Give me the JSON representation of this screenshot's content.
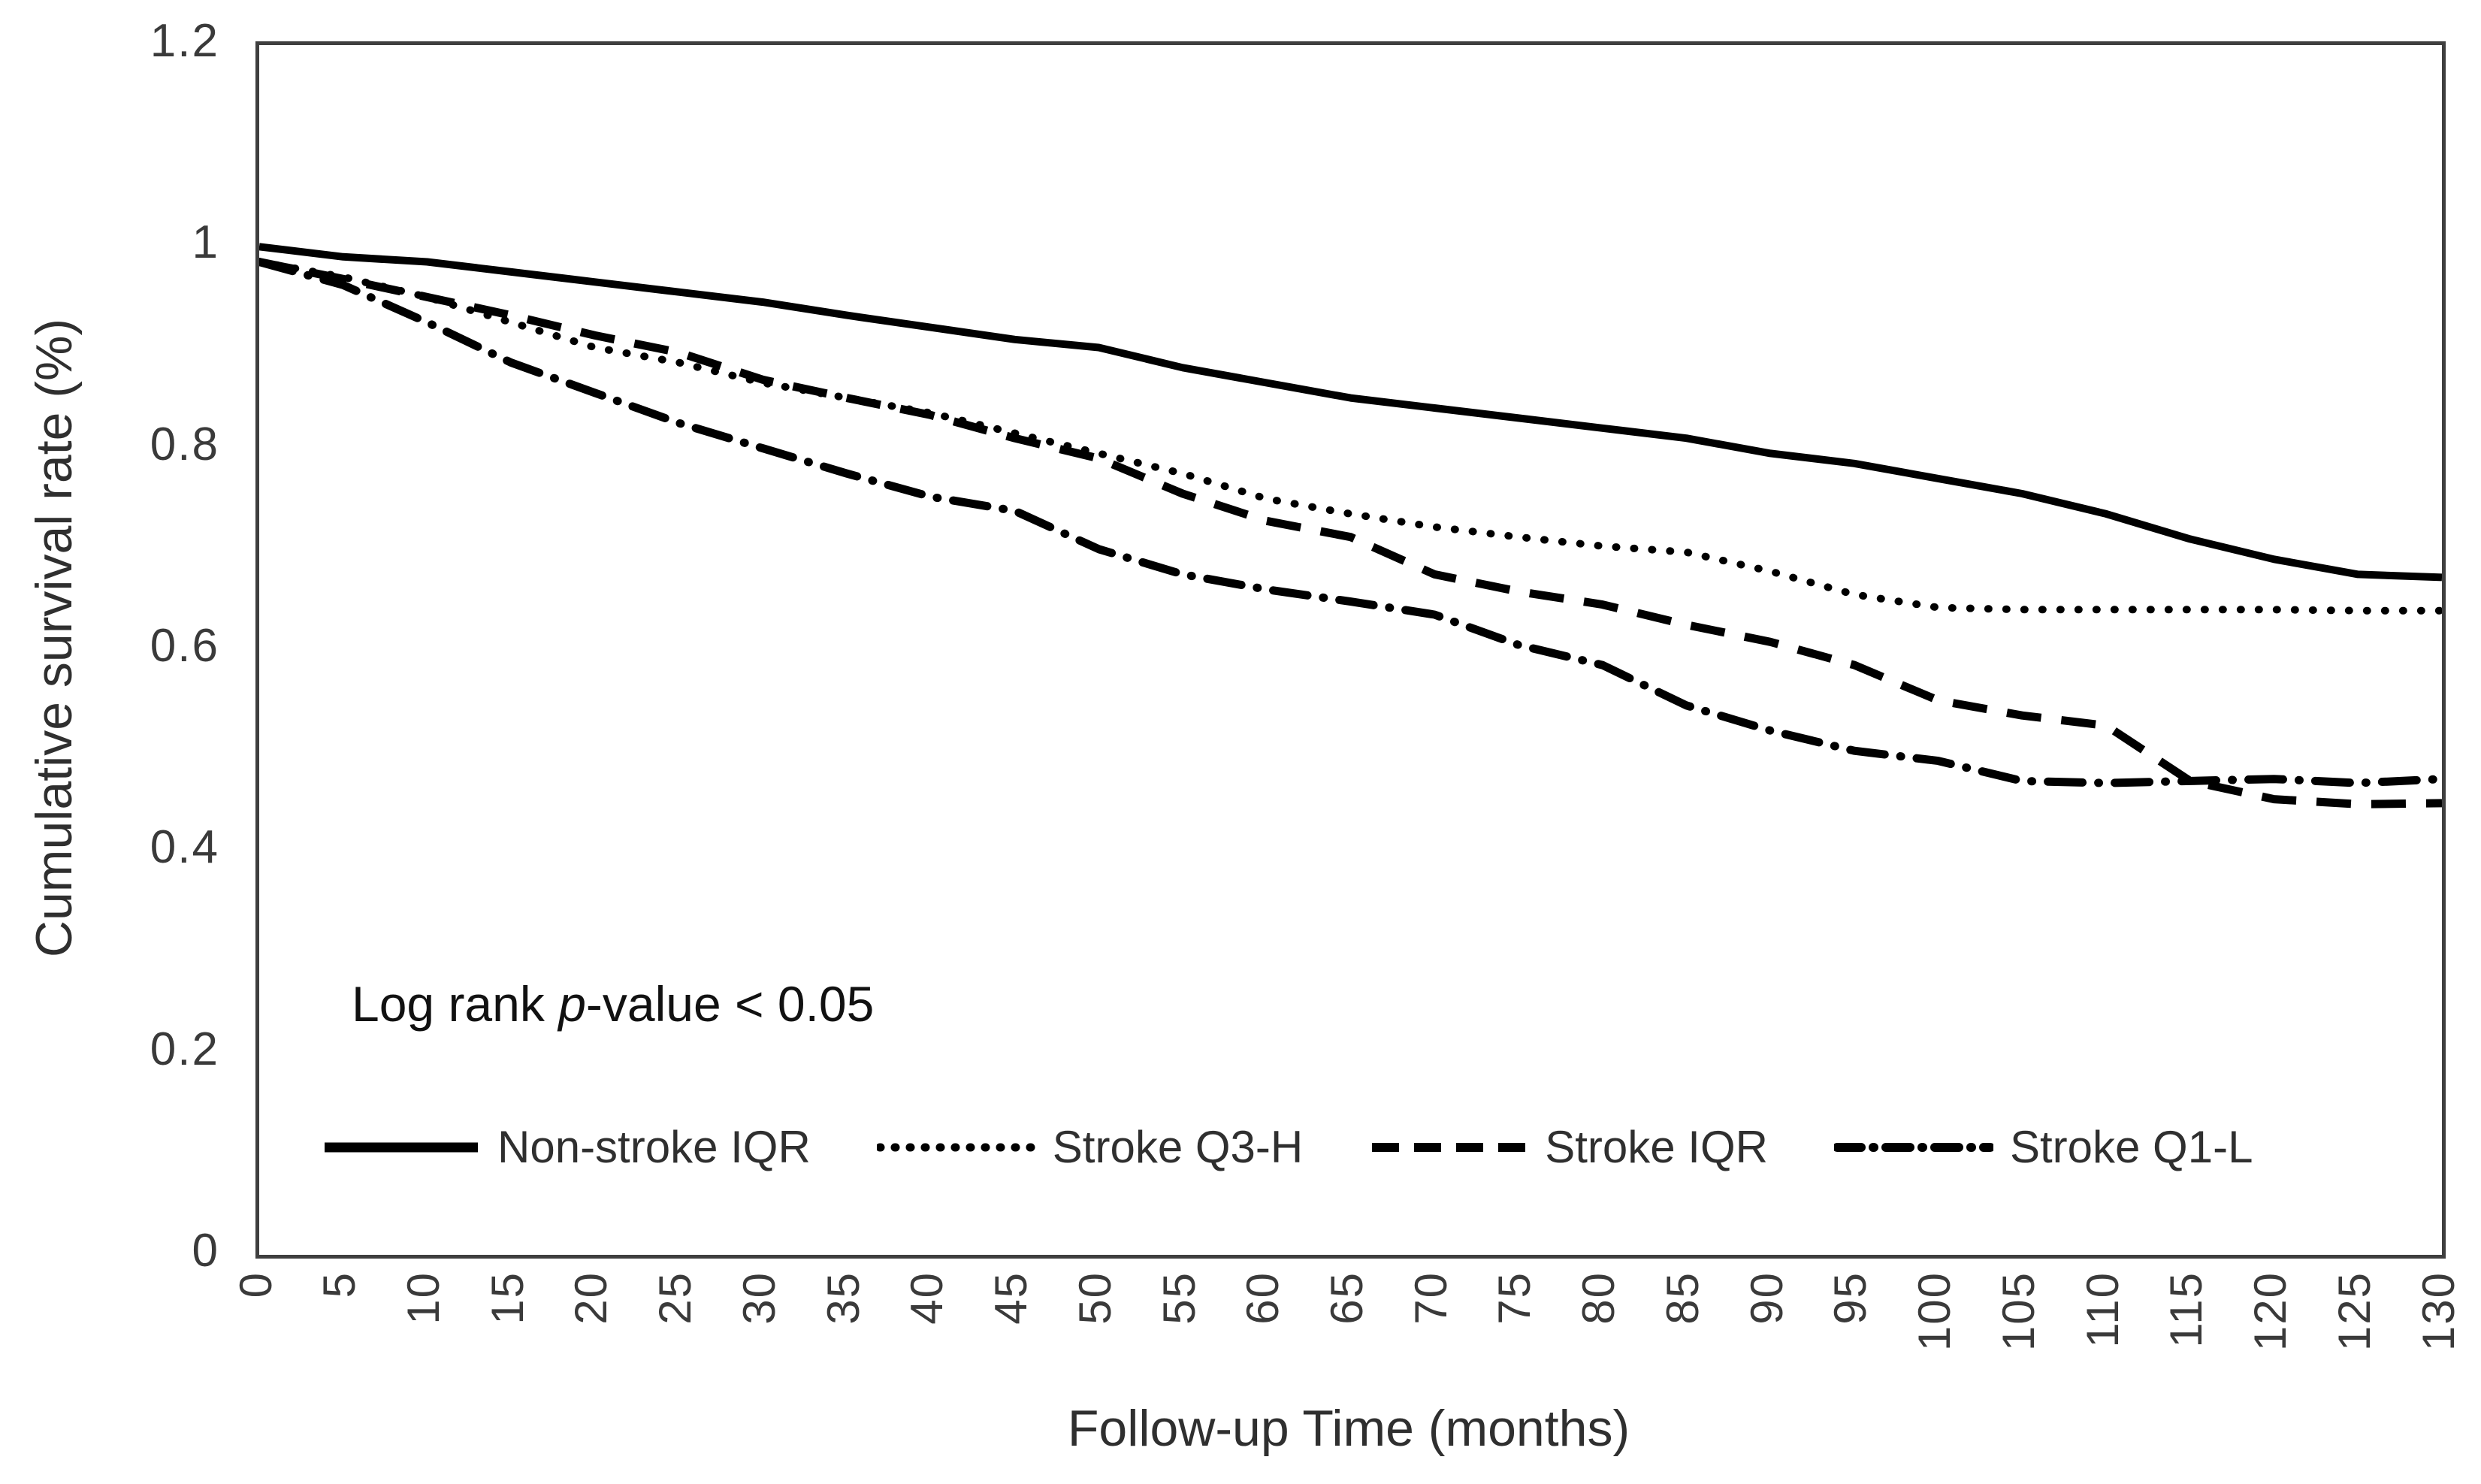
{
  "chart_data": {
    "type": "line",
    "title": "",
    "xlabel": "Follow-up Time (months)",
    "ylabel": "Cumulative survival rate (%)",
    "x": [
      0,
      5,
      10,
      15,
      20,
      25,
      30,
      35,
      40,
      45,
      50,
      55,
      60,
      65,
      70,
      75,
      80,
      85,
      90,
      95,
      100,
      105,
      110,
      115,
      120,
      125,
      130
    ],
    "xlim": [
      0,
      130
    ],
    "ylim": [
      0,
      1.2
    ],
    "yticks": [
      0,
      0.2,
      0.4,
      0.6,
      0.8,
      1,
      1.2
    ],
    "ytick_labels": [
      "0",
      "0.2",
      "0.4",
      "0.6",
      "0.8",
      "1",
      "1.2"
    ],
    "xtick_labels": [
      "0",
      "5",
      "10",
      "15",
      "20",
      "25",
      "30",
      "35",
      "40",
      "45",
      "50",
      "55",
      "60",
      "65",
      "70",
      "75",
      "80",
      "85",
      "90",
      "95",
      "100",
      "105",
      "110",
      "115",
      "120",
      "125",
      "130"
    ],
    "grid": false,
    "legend_position": "bottom-inside",
    "line_color": "#000000",
    "axis_color": "#3f3f3f",
    "annotation": {
      "prefix": "Log rank ",
      "italic": "p",
      "suffix": "-value < 0.05"
    },
    "series": [
      {
        "name": "Non-stroke IQR",
        "dash": "solid",
        "values": [
          1.0,
          0.99,
          0.985,
          0.975,
          0.965,
          0.955,
          0.945,
          0.932,
          0.92,
          0.908,
          0.9,
          0.88,
          0.865,
          0.85,
          0.84,
          0.83,
          0.82,
          0.81,
          0.795,
          0.785,
          0.77,
          0.755,
          0.735,
          0.71,
          0.69,
          0.675,
          0.672
        ]
      },
      {
        "name": "Stroke Q3-H",
        "dash": "dotted",
        "values": [
          0.985,
          0.97,
          0.95,
          0.925,
          0.9,
          0.885,
          0.865,
          0.85,
          0.835,
          0.815,
          0.795,
          0.775,
          0.75,
          0.735,
          0.722,
          0.712,
          0.703,
          0.697,
          0.678,
          0.655,
          0.642,
          0.64,
          0.64,
          0.64,
          0.64,
          0.639,
          0.639
        ]
      },
      {
        "name": "Stroke IQR",
        "dash": "dashed",
        "values": [
          0.985,
          0.968,
          0.95,
          0.932,
          0.912,
          0.895,
          0.868,
          0.85,
          0.833,
          0.81,
          0.79,
          0.755,
          0.728,
          0.712,
          0.675,
          0.658,
          0.645,
          0.625,
          0.608,
          0.585,
          0.55,
          0.535,
          0.525,
          0.47,
          0.452,
          0.447,
          0.448
        ]
      },
      {
        "name": "Stroke Q1-L",
        "dash": "dashdot",
        "values": [
          0.985,
          0.962,
          0.925,
          0.885,
          0.855,
          0.825,
          0.8,
          0.775,
          0.752,
          0.738,
          0.7,
          0.675,
          0.66,
          0.648,
          0.635,
          0.605,
          0.585,
          0.545,
          0.52,
          0.5,
          0.49,
          0.47,
          0.468,
          0.47,
          0.472,
          0.468,
          0.472
        ]
      }
    ]
  }
}
